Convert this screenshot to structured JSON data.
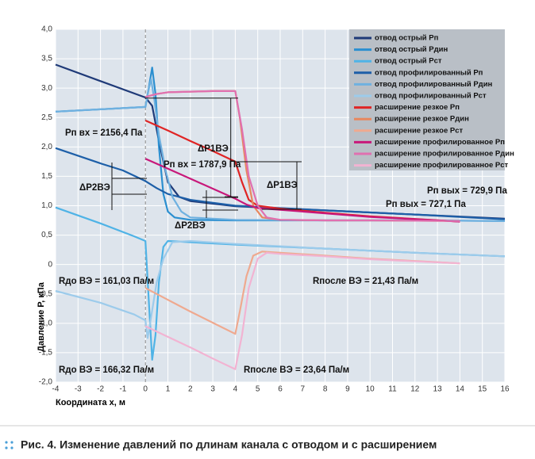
{
  "caption": "Рис. 4. Изменение давлений по длинам канала с отводом и с расширением",
  "chart_data": {
    "type": "line",
    "x_label": "Координата x, м",
    "y_label": "Давление P, кПа",
    "xlim": [
      -4,
      16
    ],
    "ylim": [
      -2,
      4
    ],
    "xticks": [
      -4,
      -3,
      -2,
      -1,
      0,
      1,
      2,
      3,
      4,
      5,
      6,
      7,
      8,
      9,
      10,
      11,
      12,
      13,
      14,
      15,
      16
    ],
    "yticks": [
      {
        "value": -2,
        "label": "-2,0"
      },
      {
        "value": -1.5,
        "label": "-1,5"
      },
      {
        "value": -1,
        "label": "-1,0"
      },
      {
        "value": -0.5,
        "label": "-0,5"
      },
      0,
      {
        "value": 0.5,
        "label": "0,5"
      },
      {
        "value": 1,
        "label": "1,0"
      },
      {
        "value": 1.5,
        "label": "1,5"
      },
      {
        "value": 2,
        "label": "2,0"
      },
      {
        "value": 2.5,
        "label": "2,5"
      },
      {
        "value": 3,
        "label": "3,0"
      },
      {
        "value": 3.5,
        "label": "3,5"
      },
      {
        "value": 4,
        "label": "4,0"
      }
    ],
    "grid": true,
    "legend": "upper right",
    "series": [
      {
        "name": "отвод острый Pп",
        "color": "#1f3a78",
        "x": [
          -4,
          -2,
          0,
          0.3,
          0.6,
          1,
          1.5,
          2,
          4,
          8,
          12,
          16
        ],
        "values": [
          3.4,
          3.12,
          2.84,
          2.7,
          2.1,
          1.4,
          1.15,
          1.08,
          0.99,
          0.92,
          0.85,
          0.78
        ]
      },
      {
        "name": "отвод острый Pдин",
        "color": "#2b8fd0",
        "x": [
          -4,
          -2,
          0,
          0.15,
          0.3,
          0.45,
          0.6,
          0.8,
          1,
          1.3,
          2,
          4,
          8,
          12,
          16
        ],
        "values": [
          2.6,
          2.64,
          2.68,
          3.0,
          3.35,
          2.9,
          2.0,
          1.2,
          0.9,
          0.8,
          0.76,
          0.75,
          0.75,
          0.75,
          0.74
        ]
      },
      {
        "name": "отвод острый Pст",
        "color": "#4fb3e6",
        "x": [
          -4,
          -2,
          -0.5,
          0,
          0.15,
          0.3,
          0.45,
          0.6,
          0.8,
          1,
          2,
          4,
          8,
          12,
          16
        ],
        "values": [
          0.97,
          0.7,
          0.48,
          0.4,
          -0.6,
          -1.62,
          -1.2,
          -0.3,
          0.3,
          0.4,
          0.38,
          0.34,
          0.27,
          0.2,
          0.14
        ]
      },
      {
        "name": "отвод профилированный Pп",
        "color": "#1d5fa8",
        "x": [
          -4,
          -2,
          -1,
          0,
          0.5,
          1,
          2,
          4,
          8,
          12,
          16
        ],
        "values": [
          1.98,
          1.72,
          1.6,
          1.42,
          1.3,
          1.2,
          1.1,
          1.0,
          0.92,
          0.85,
          0.77
        ]
      },
      {
        "name": "отвод профилированный Pдин",
        "color": "#6fb1e0",
        "x": [
          -4,
          -2,
          0,
          0.1,
          0.25,
          0.4,
          0.6,
          0.9,
          1.2,
          1.6,
          2,
          4,
          8,
          12,
          16
        ],
        "values": [
          2.6,
          2.64,
          2.68,
          2.9,
          3.15,
          2.8,
          2.2,
          1.6,
          1.15,
          0.9,
          0.8,
          0.76,
          0.75,
          0.75,
          0.74
        ]
      },
      {
        "name": "отвод профилированный Pст",
        "color": "#9ccbeb",
        "x": [
          -4,
          -2,
          -0.5,
          0,
          0.1,
          0.25,
          0.5,
          0.8,
          1.2,
          2,
          4,
          8,
          12,
          16
        ],
        "values": [
          -0.45,
          -0.65,
          -0.85,
          -0.95,
          -1.25,
          -0.9,
          -0.3,
          0.1,
          0.38,
          0.4,
          0.35,
          0.27,
          0.2,
          0.14
        ]
      },
      {
        "name": "расширение резкое Pп",
        "color": "#e02424",
        "x": [
          0,
          1,
          2,
          3,
          4,
          4.3,
          4.6,
          5,
          6,
          8,
          10,
          14
        ],
        "values": [
          2.45,
          2.28,
          2.1,
          1.93,
          1.75,
          1.4,
          1.1,
          1.0,
          0.95,
          0.88,
          0.82,
          0.73
        ]
      },
      {
        "name": "расширение резкое Pдин",
        "color": "#e8875e",
        "x": [
          0,
          0.5,
          1,
          2,
          3,
          4,
          4.2,
          4.5,
          4.8,
          5.2,
          6,
          8,
          10,
          14
        ],
        "values": [
          2.85,
          2.9,
          2.93,
          2.94,
          2.95,
          2.95,
          2.5,
          1.6,
          1.0,
          0.8,
          0.76,
          0.75,
          0.75,
          0.74
        ]
      },
      {
        "name": "расширение резкое Pст",
        "color": "#efa98f",
        "x": [
          0,
          1,
          2,
          3,
          4,
          4.2,
          4.5,
          4.8,
          5.2,
          6,
          8,
          10,
          14
        ],
        "values": [
          -0.4,
          -0.6,
          -0.8,
          -0.99,
          -1.18,
          -0.8,
          -0.2,
          0.15,
          0.22,
          0.2,
          0.15,
          0.1,
          0.02
        ]
      },
      {
        "name": "расширение профилированное Pп",
        "color": "#c8187a",
        "x": [
          0,
          1,
          2,
          3,
          4,
          4.5,
          5,
          6,
          8,
          10,
          14
        ],
        "values": [
          1.8,
          1.63,
          1.46,
          1.29,
          1.12,
          1.02,
          0.96,
          0.93,
          0.87,
          0.81,
          0.73
        ]
      },
      {
        "name": "расширение профилированное Pдин",
        "color": "#e070b0",
        "x": [
          0,
          0.5,
          1,
          2,
          3,
          4,
          4.3,
          4.6,
          5,
          5.4,
          6,
          8,
          10,
          14
        ],
        "values": [
          2.85,
          2.9,
          2.93,
          2.94,
          2.95,
          2.95,
          2.3,
          1.5,
          1.0,
          0.8,
          0.76,
          0.75,
          0.75,
          0.74
        ]
      },
      {
        "name": "расширение профилированное Pст",
        "color": "#f2b3d2",
        "x": [
          0,
          1,
          2,
          3,
          4,
          4.3,
          4.6,
          5,
          5.4,
          6,
          8,
          10,
          14
        ],
        "values": [
          -1.05,
          -1.23,
          -1.41,
          -1.6,
          -1.78,
          -1.2,
          -0.4,
          0.1,
          0.2,
          0.18,
          0.14,
          0.09,
          0.02
        ]
      }
    ],
    "annotations": [
      "Pп вх = 2156,4 Па",
      "ΔP1ВЭ",
      "Pп вх = 1787,9 Па",
      "ΔP1ВЭ",
      "ΔP2ВЭ",
      "ΔP2ВЭ",
      "Pп вых = 729,9 Па",
      "Pп вых = 727,1 Па",
      "Rдо ВЭ = 161,03 Па/м",
      "Rпосле ВЭ = 21,43 Па/м",
      "Rдо ВЭ = 166,32 Па/м",
      "Rпосле ВЭ = 23,64 Па/м"
    ]
  }
}
